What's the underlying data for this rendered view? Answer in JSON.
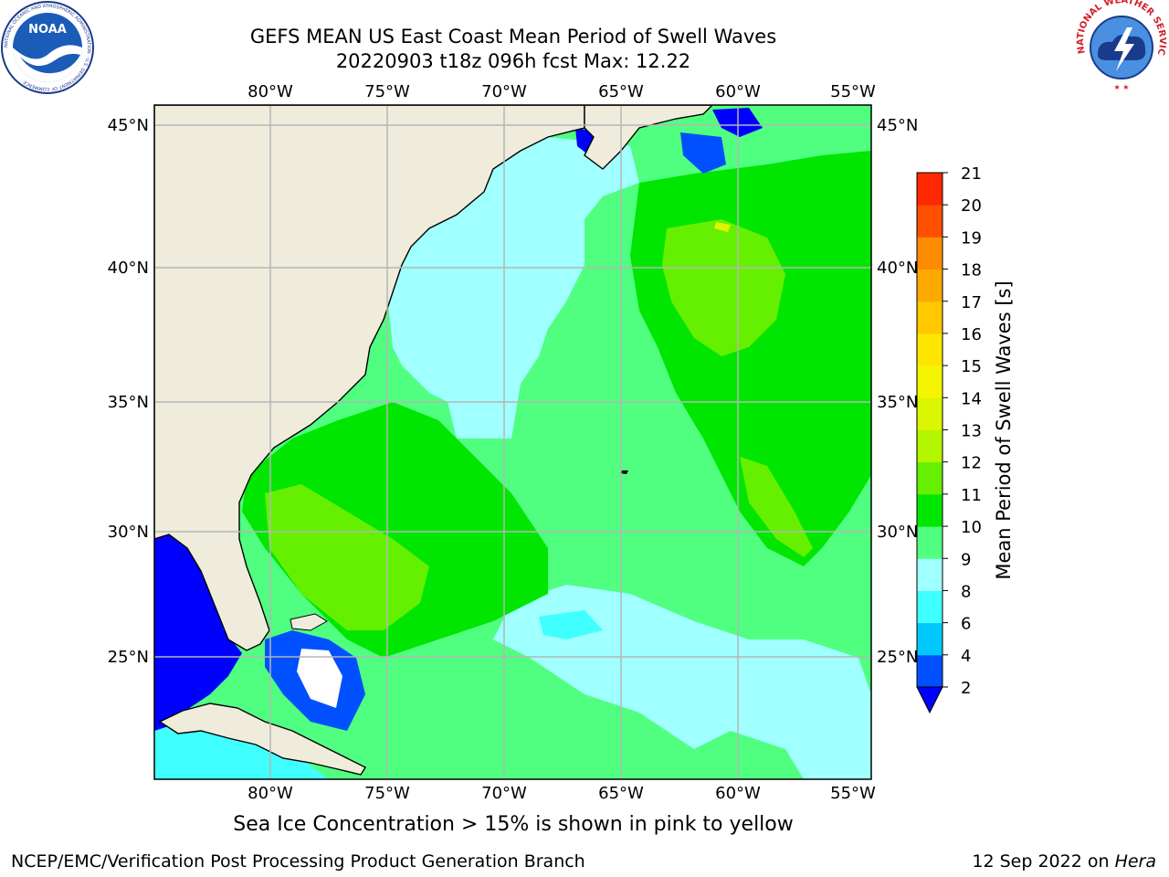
{
  "header": {
    "title_line1": "GEFS MEAN US East Coast Mean Period of Swell Waves",
    "title_line2": "20220903 t18z 096h fcst   Max: 12.22"
  },
  "logos": {
    "left": {
      "name": "noaa-logo",
      "text": "NOAA",
      "ring_text": "NATIONAL OCEANIC AND ATMOSPHERIC ADMINISTRATION · U.S. DEPARTMENT OF COMMERCE"
    },
    "right": {
      "name": "nws-logo",
      "ring_text": "NATIONAL WEATHER SERVICE"
    }
  },
  "map": {
    "lon_labels": [
      "80°W",
      "75°W",
      "70°W",
      "65°W",
      "60°W",
      "55°W"
    ],
    "lat_labels": [
      "45°N",
      "40°N",
      "35°N",
      "30°N",
      "25°N"
    ],
    "lon_values": [
      -80,
      -75,
      -70,
      -65,
      -60,
      -55
    ],
    "lat_values": [
      45,
      40,
      35,
      30,
      25
    ],
    "extent": {
      "lon": [
        -85,
        -54.2
      ],
      "lat": [
        20.5,
        46
      ]
    },
    "colors": {
      "land": "#efecdc",
      "grid": "#b5b5b5",
      "coast": "#000000",
      "no_data": "#ffffff"
    }
  },
  "colorbar": {
    "label": "Mean Period of Swell Waves [s]",
    "ticks": [
      "2",
      "4",
      "6",
      "8",
      "9",
      "10",
      "11",
      "12",
      "13",
      "14",
      "15",
      "16",
      "17",
      "18",
      "19",
      "20",
      "21"
    ],
    "colors": [
      "#0050ff",
      "#00c8ff",
      "#40ffff",
      "#a0ffff",
      "#50ff80",
      "#00e600",
      "#64f000",
      "#b4f500",
      "#dcf500",
      "#f5f500",
      "#ffe600",
      "#ffc800",
      "#ffaa00",
      "#ff8c00",
      "#ff5000",
      "#ff2800",
      "#ff0000"
    ],
    "under_color": "#0000ff"
  },
  "footer": {
    "note": "Sea Ice Concentration > 15% is shown in pink to yellow",
    "credit": "NCEP/EMC/Verification Post Processing Product Generation Branch",
    "date": "12 Sep 2022 on ",
    "machine": "Hera"
  }
}
